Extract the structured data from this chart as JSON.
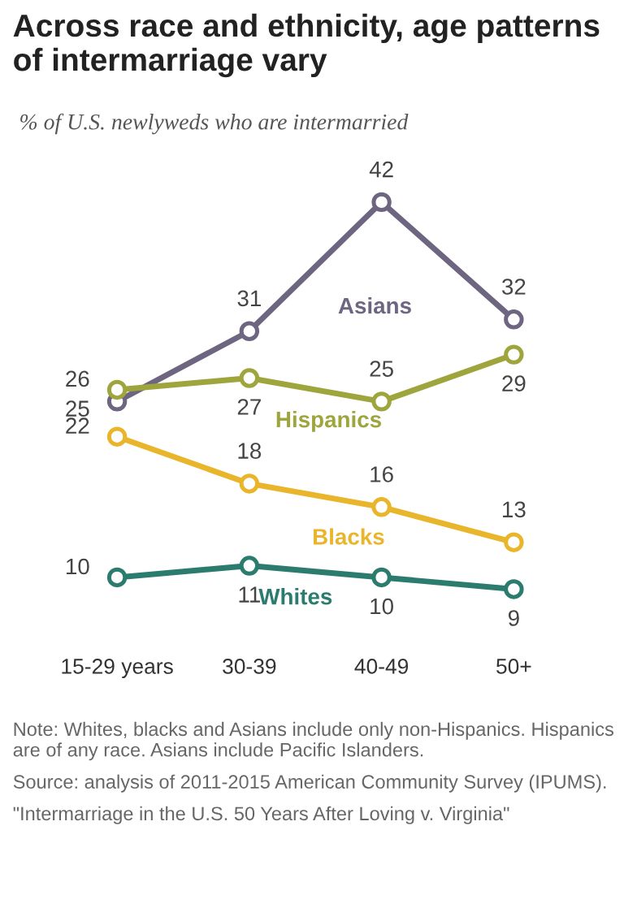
{
  "chart_data": {
    "type": "line",
    "title": "Across race and ethnicity, age patterns of intermarriage vary",
    "subtitle": "% of U.S. newlyweds who are intermarried",
    "categories": [
      "15-29 years",
      "30-39",
      "40-49",
      "50+"
    ],
    "series": [
      {
        "name": "Asians",
        "color": "#6e6580",
        "values": [
          25,
          31,
          42,
          32
        ]
      },
      {
        "name": "Hispanics",
        "color": "#9ea53c",
        "values": [
          26,
          27,
          25,
          29
        ]
      },
      {
        "name": "Blacks",
        "color": "#e9b52a",
        "values": [
          22,
          18,
          16,
          13
        ]
      },
      {
        "name": "Whites",
        "color": "#2b7b6f",
        "values": [
          10,
          11,
          10,
          9
        ]
      }
    ],
    "data_labels": true,
    "marker": "circle",
    "line_style": "solid",
    "grid": false,
    "legend": false,
    "annotations": [
      "Note: Whites, blacks and Asians include only non-Hispanics. Hispanics are of any race. Asians include Pacific Islanders.",
      "Source: analysis of 2011-2015 American Community Survey (IPUMS).",
      "\"Intermarriage in the U.S. 50 Years After Loving v. Virginia\""
    ]
  }
}
